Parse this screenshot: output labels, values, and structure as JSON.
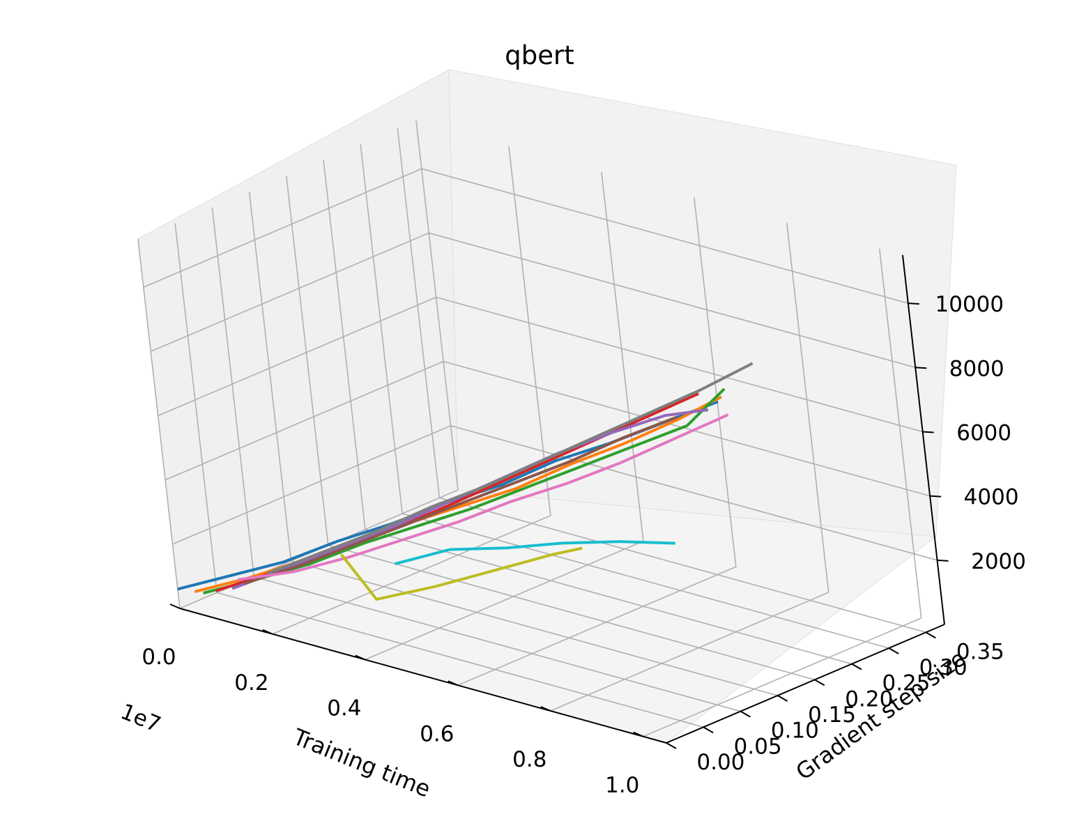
{
  "chart_data": {
    "type": "line3d",
    "title": "qbert",
    "xlabel": "Training time",
    "ylabel": "Gradient step size",
    "zlabel": "",
    "x_offset_label": "1e7",
    "x_ticks": [
      "0.0",
      "0.2",
      "0.4",
      "0.6",
      "0.8",
      "1.0"
    ],
    "y_ticks": [
      "0.00",
      "0.05",
      "0.10",
      "0.15",
      "0.20",
      "0.25",
      "0.30",
      "0.35"
    ],
    "z_ticks": [
      "2000",
      "4000",
      "6000",
      "8000",
      "10000"
    ],
    "xlim": [
      0,
      1.05
    ],
    "ylim": [
      0,
      0.375
    ],
    "zlim": [
      0,
      11500
    ],
    "colors": [
      "#1f77b4",
      "#ff7f0e",
      "#2ca02c",
      "#d62728",
      "#9467bd",
      "#8c564b",
      "#e377c2",
      "#7f7f7f",
      "#bcbd22",
      "#17becf"
    ],
    "series": [
      {
        "color": "#1f77b4",
        "values": [
          [
            0.0,
            0.0,
            600
          ],
          [
            0.1,
            0.012,
            1300
          ],
          [
            0.2,
            0.025,
            2000
          ],
          [
            0.3,
            0.04,
            2900
          ],
          [
            0.4,
            0.055,
            3700
          ],
          [
            0.5,
            0.07,
            4600
          ],
          [
            0.6,
            0.085,
            5400
          ],
          [
            0.7,
            0.1,
            6400
          ],
          [
            0.8,
            0.115,
            7200
          ],
          [
            0.9,
            0.13,
            8100
          ],
          [
            1.0,
            0.145,
            9000
          ]
        ]
      },
      {
        "color": "#ff7f0e",
        "values": [
          [
            0.02,
            0.01,
            500
          ],
          [
            0.12,
            0.022,
            1200
          ],
          [
            0.22,
            0.036,
            2000
          ],
          [
            0.32,
            0.05,
            2800
          ],
          [
            0.42,
            0.064,
            3700
          ],
          [
            0.52,
            0.078,
            4500
          ],
          [
            0.62,
            0.092,
            5300
          ],
          [
            0.72,
            0.108,
            6300
          ],
          [
            0.82,
            0.122,
            7200
          ],
          [
            0.92,
            0.138,
            8200
          ],
          [
            1.0,
            0.15,
            9100
          ]
        ]
      },
      {
        "color": "#2ca02c",
        "values": [
          [
            0.03,
            0.015,
            450
          ],
          [
            0.13,
            0.027,
            1150
          ],
          [
            0.23,
            0.04,
            1900
          ],
          [
            0.33,
            0.055,
            2800
          ],
          [
            0.43,
            0.068,
            3600
          ],
          [
            0.53,
            0.082,
            4400
          ],
          [
            0.63,
            0.097,
            5300
          ],
          [
            0.73,
            0.112,
            6200
          ],
          [
            0.83,
            0.127,
            7100
          ],
          [
            0.93,
            0.142,
            8000
          ],
          [
            1.0,
            0.155,
            9300
          ]
        ]
      },
      {
        "color": "#d62728",
        "values": [
          [
            0.05,
            0.02,
            550
          ],
          [
            0.15,
            0.035,
            1350
          ],
          [
            0.25,
            0.05,
            2200
          ],
          [
            0.35,
            0.065,
            3100
          ],
          [
            0.45,
            0.08,
            4000
          ],
          [
            0.55,
            0.095,
            5000
          ],
          [
            0.65,
            0.11,
            6000
          ],
          [
            0.75,
            0.125,
            7000
          ],
          [
            0.85,
            0.14,
            8000
          ],
          [
            0.95,
            0.15,
            9000
          ]
        ]
      },
      {
        "color": "#9467bd",
        "values": [
          [
            0.07,
            0.03,
            600
          ],
          [
            0.17,
            0.042,
            1500
          ],
          [
            0.27,
            0.058,
            2400
          ],
          [
            0.37,
            0.072,
            3300
          ],
          [
            0.47,
            0.088,
            4300
          ],
          [
            0.57,
            0.103,
            5300
          ],
          [
            0.67,
            0.12,
            6300
          ],
          [
            0.77,
            0.135,
            7200
          ],
          [
            0.87,
            0.15,
            8000
          ],
          [
            0.95,
            0.16,
            8400
          ]
        ]
      },
      {
        "color": "#8c564b",
        "values": [
          [
            0.08,
            0.04,
            700
          ],
          [
            0.18,
            0.055,
            1500
          ],
          [
            0.28,
            0.07,
            2400
          ],
          [
            0.38,
            0.085,
            3300
          ],
          [
            0.48,
            0.1,
            4200
          ],
          [
            0.58,
            0.115,
            5100
          ],
          [
            0.68,
            0.13,
            6000
          ],
          [
            0.78,
            0.145,
            7000
          ],
          [
            0.88,
            0.16,
            7900
          ]
        ]
      },
      {
        "color": "#e377c2",
        "values": [
          [
            0.05,
            0.05,
            600
          ],
          [
            0.15,
            0.065,
            1100
          ],
          [
            0.25,
            0.08,
            1800
          ],
          [
            0.35,
            0.095,
            2600
          ],
          [
            0.45,
            0.11,
            3400
          ],
          [
            0.55,
            0.125,
            4300
          ],
          [
            0.65,
            0.14,
            5100
          ],
          [
            0.75,
            0.155,
            6000
          ],
          [
            0.85,
            0.17,
            7000
          ],
          [
            0.95,
            0.185,
            8000
          ]
        ]
      },
      {
        "color": "#7f7f7f",
        "values": [
          [
            0.1,
            0.06,
            900
          ],
          [
            0.2,
            0.075,
            1800
          ],
          [
            0.3,
            0.09,
            2700
          ],
          [
            0.4,
            0.105,
            3700
          ],
          [
            0.5,
            0.12,
            4600
          ],
          [
            0.6,
            0.135,
            5600
          ],
          [
            0.7,
            0.15,
            6600
          ],
          [
            0.8,
            0.165,
            7600
          ],
          [
            0.9,
            0.18,
            8600
          ],
          [
            1.0,
            0.195,
            9700
          ]
        ]
      },
      {
        "color": "#bcbd22",
        "values": [
          [
            0.2,
            0.1,
            1500
          ],
          [
            0.25,
            0.11,
            200
          ],
          [
            0.35,
            0.13,
            800
          ],
          [
            0.45,
            0.15,
            1500
          ],
          [
            0.55,
            0.17,
            2200
          ],
          [
            0.6,
            0.18,
            2500
          ]
        ]
      },
      {
        "color": "#17becf",
        "values": [
          [
            0.3,
            0.11,
            1500
          ],
          [
            0.4,
            0.125,
            2200
          ],
          [
            0.5,
            0.14,
            2500
          ],
          [
            0.6,
            0.155,
            2900
          ],
          [
            0.7,
            0.17,
            3200
          ],
          [
            0.8,
            0.185,
            3400
          ]
        ]
      }
    ]
  }
}
